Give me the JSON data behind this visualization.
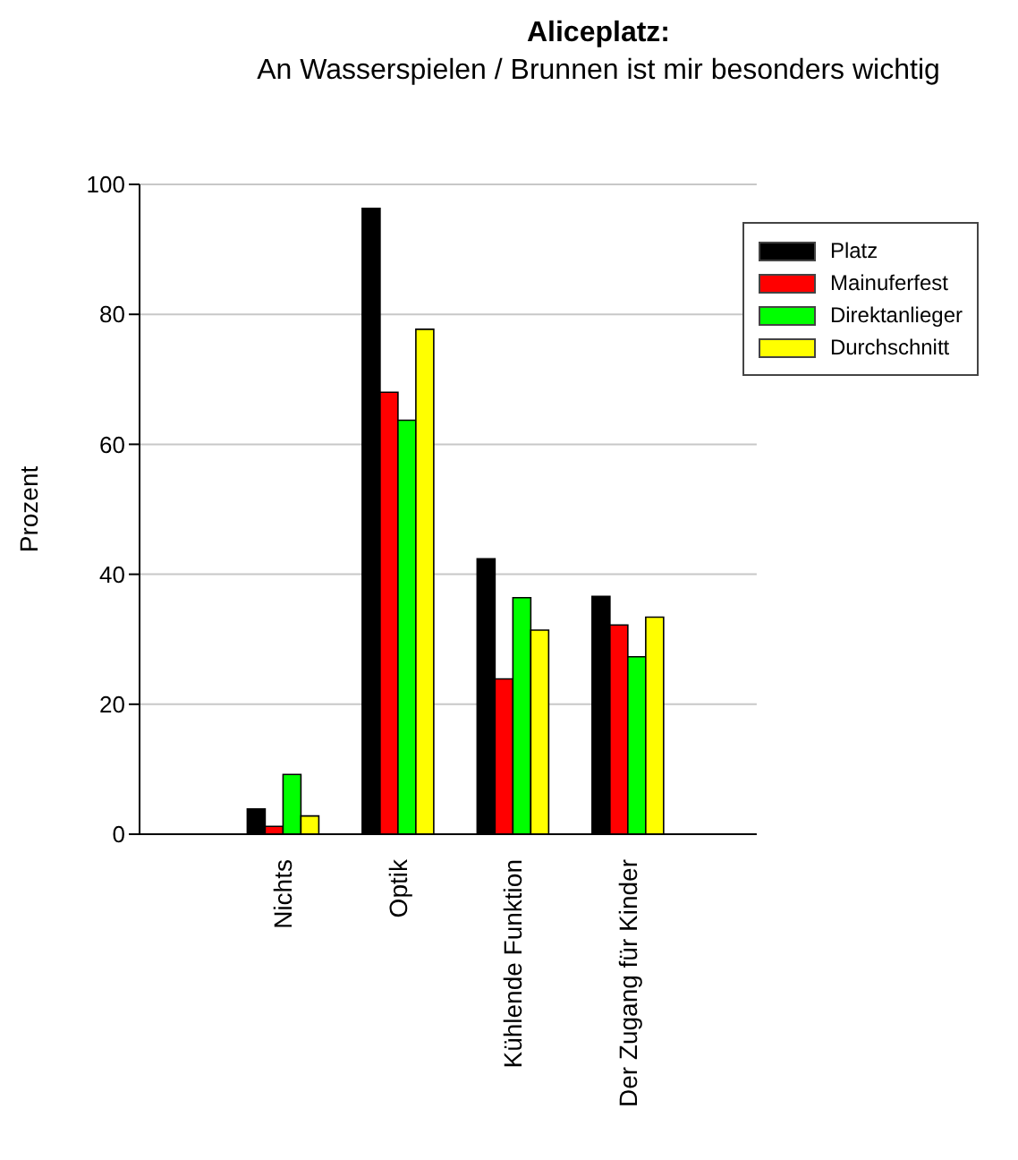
{
  "chart_data": {
    "type": "bar",
    "title": "Aliceplatz:",
    "subtitle": "An Wasserspielen / Brunnen ist mir besonders wichtig",
    "ylabel": "Prozent",
    "categories": [
      "Nichts",
      "Optik",
      "Kühlende Funktion",
      "Der Zugang für Kinder"
    ],
    "series": [
      {
        "name": "Platz",
        "color": "#000000",
        "values": [
          3.9,
          96.3,
          42.4,
          36.6
        ]
      },
      {
        "name": "Mainuferfest",
        "color": "#ff0000",
        "values": [
          1.2,
          68,
          23.9,
          32.2
        ]
      },
      {
        "name": "Direktanlieger",
        "color": "#00ff00",
        "values": [
          9.2,
          63.7,
          36.4,
          27.3
        ]
      },
      {
        "name": "Durchschnitt",
        "color": "#ffff00",
        "values": [
          2.8,
          77.7,
          31.4,
          33.4
        ]
      }
    ],
    "ylim": [
      0,
      100
    ],
    "yticks": [
      0,
      20,
      40,
      60,
      80,
      100
    ],
    "grid": "y",
    "legend": "top right"
  }
}
